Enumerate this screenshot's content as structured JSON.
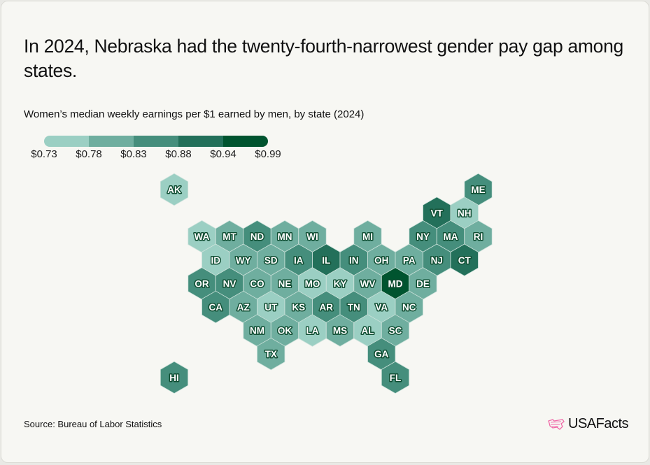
{
  "title": "In 2024, Nebraska had the twenty-fourth-narrowest gender pay gap among states.",
  "footer": {
    "source": "Source: Bureau of Labor Statistics",
    "logo": "USAFacts"
  },
  "chart_data": {
    "type": "hex-tile-map",
    "title": "In 2024, Nebraska had the twenty-fourth-narrowest gender pay gap among states.",
    "subtitle": "Women’s median weekly earnings per $1 earned by men, by state (2024)",
    "legend": {
      "breaks": [
        "$0.73",
        "$0.78",
        "$0.83",
        "$0.88",
        "$0.94",
        "$0.99"
      ],
      "colors": [
        "#9bcfc3",
        "#6fae9f",
        "#458e7c",
        "#23705a",
        "#00542f"
      ]
    },
    "states": [
      {
        "code": "AK",
        "bin": 0
      },
      {
        "code": "ME",
        "bin": 2
      },
      {
        "code": "VT",
        "bin": 3
      },
      {
        "code": "NH",
        "bin": 0
      },
      {
        "code": "WA",
        "bin": 0
      },
      {
        "code": "MT",
        "bin": 1
      },
      {
        "code": "ND",
        "bin": 2
      },
      {
        "code": "MN",
        "bin": 1
      },
      {
        "code": "WI",
        "bin": 1
      },
      {
        "code": "MI",
        "bin": 1
      },
      {
        "code": "NY",
        "bin": 2
      },
      {
        "code": "MA",
        "bin": 2
      },
      {
        "code": "RI",
        "bin": 1
      },
      {
        "code": "ID",
        "bin": 0
      },
      {
        "code": "WY",
        "bin": 1
      },
      {
        "code": "SD",
        "bin": 1
      },
      {
        "code": "IA",
        "bin": 2
      },
      {
        "code": "IL",
        "bin": 3
      },
      {
        "code": "IN",
        "bin": 2
      },
      {
        "code": "OH",
        "bin": 1
      },
      {
        "code": "PA",
        "bin": 1
      },
      {
        "code": "NJ",
        "bin": 2
      },
      {
        "code": "CT",
        "bin": 3
      },
      {
        "code": "OR",
        "bin": 2
      },
      {
        "code": "NV",
        "bin": 2
      },
      {
        "code": "CO",
        "bin": 1
      },
      {
        "code": "NE",
        "bin": 1
      },
      {
        "code": "MO",
        "bin": 0
      },
      {
        "code": "KY",
        "bin": 0
      },
      {
        "code": "WV",
        "bin": 1
      },
      {
        "code": "MD",
        "bin": 4
      },
      {
        "code": "DE",
        "bin": 1
      },
      {
        "code": "CA",
        "bin": 2
      },
      {
        "code": "AZ",
        "bin": 1
      },
      {
        "code": "UT",
        "bin": 0
      },
      {
        "code": "KS",
        "bin": 1
      },
      {
        "code": "AR",
        "bin": 2
      },
      {
        "code": "TN",
        "bin": 2
      },
      {
        "code": "VA",
        "bin": 0
      },
      {
        "code": "NC",
        "bin": 1
      },
      {
        "code": "NM",
        "bin": 1
      },
      {
        "code": "OK",
        "bin": 1
      },
      {
        "code": "LA",
        "bin": 0
      },
      {
        "code": "MS",
        "bin": 1
      },
      {
        "code": "AL",
        "bin": 0
      },
      {
        "code": "SC",
        "bin": 1
      },
      {
        "code": "TX",
        "bin": 1
      },
      {
        "code": "GA",
        "bin": 2
      },
      {
        "code": "HI",
        "bin": 2
      },
      {
        "code": "FL",
        "bin": 2
      }
    ]
  }
}
